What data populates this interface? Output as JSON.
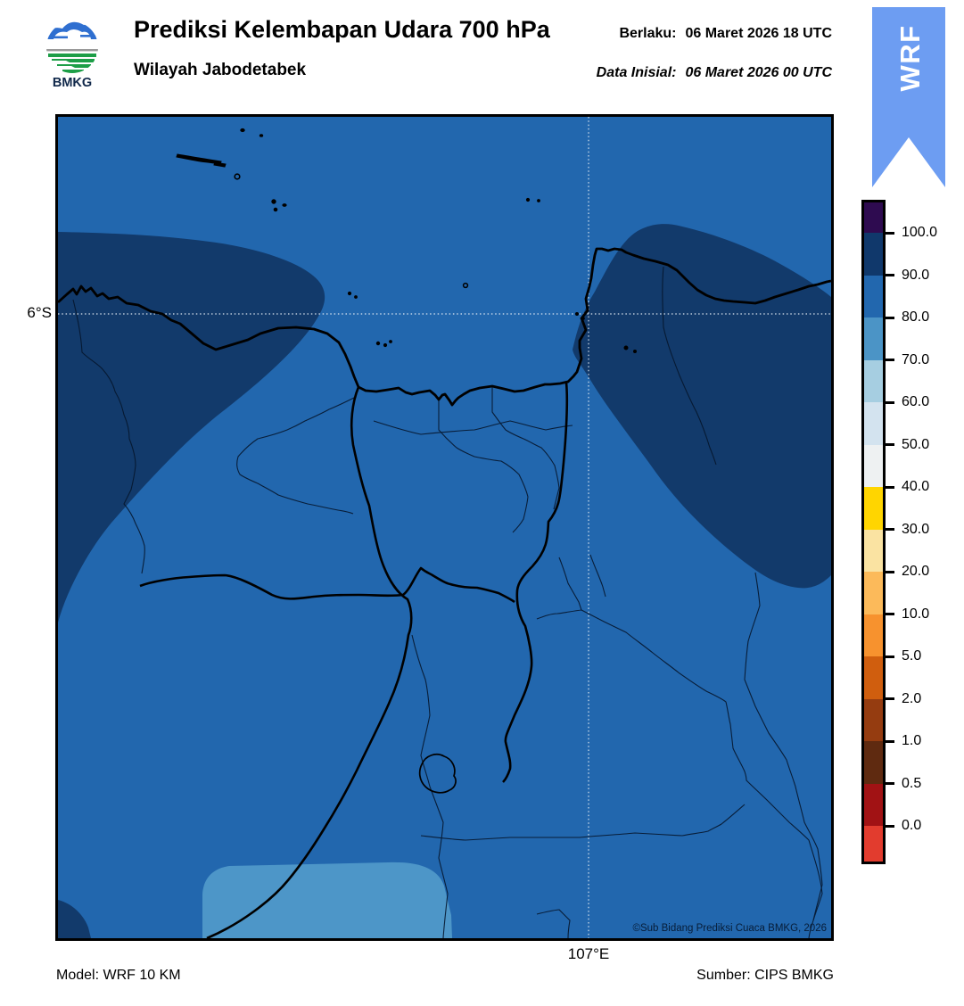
{
  "header": {
    "logo_text": "BMKG",
    "title": "Prediksi Kelembapan Udara 700 hPa",
    "subtitle": "Wilayah Jabodetabek",
    "berlaku_label": "Berlaku:",
    "berlaku_value": "06 Maret 2026 18 UTC",
    "inisial_label": "Data Inisial:",
    "inisial_value": "06 Maret 2026 00 UTC"
  },
  "ribbon": {
    "label": "WRF",
    "color": "#6d9df2"
  },
  "map": {
    "lat_tick_label": "6°S",
    "lon_tick_label": "107°E",
    "copyright": "©Sub Bidang Prediksi Cuaca BMKG, 2026",
    "colors": {
      "sea_base_80_90": "#2267ae",
      "contour_90_100": "#123a6b",
      "contour_70_80": "#4d96c8",
      "boundary_lines": "#000000",
      "gridline": "#e3ebf3"
    }
  },
  "footer": {
    "model": "Model: WRF 10 KM",
    "source": "Sumber: CIPS BMKG"
  },
  "colorbar": {
    "tick_labels": [
      "100.0",
      "90.0",
      "80.0",
      "70.0",
      "60.0",
      "50.0",
      "40.0",
      "30.0",
      "20.0",
      "10.0",
      "5.0",
      "2.0",
      "1.0",
      "0.5",
      "0.0"
    ],
    "segment_colors_top_to_bottom": [
      "#2e0b50",
      "#10386b",
      "#2267ae",
      "#4b94c6",
      "#a6cee1",
      "#d3e3ef",
      "#eef1f2",
      "#ffd500",
      "#fae3a2",
      "#fcba5a",
      "#f7922e",
      "#d05e0e",
      "#953c10",
      "#5f2a10",
      "#a11214",
      "#e23c2e"
    ]
  }
}
